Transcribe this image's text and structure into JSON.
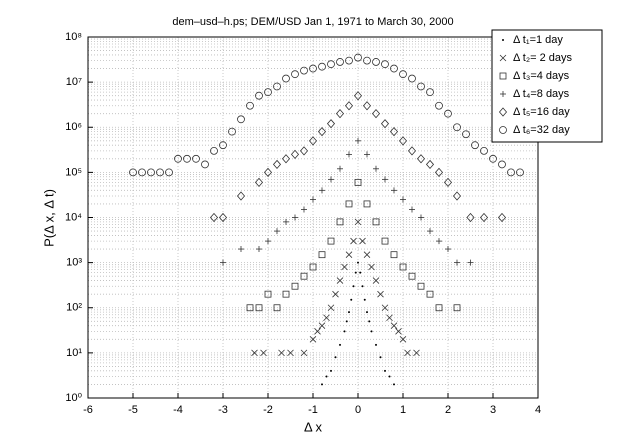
{
  "chart_data": {
    "type": "scatter",
    "title": "dem–usd–h.ps; DEM/USD Jan 1, 1971 to March 30, 2000",
    "xlabel": "Δ x",
    "ylabel": "P(Δ x, Δ t)",
    "xlim": [
      -6,
      4
    ],
    "xticks": [
      -6,
      -5,
      -4,
      -3,
      -2,
      -1,
      0,
      1,
      2,
      3,
      4
    ],
    "ylim": [
      1,
      100000000
    ],
    "log_y": true,
    "yticks": [
      {
        "value": 1,
        "label": "10⁰"
      },
      {
        "value": 10,
        "label": "10¹"
      },
      {
        "value": 100,
        "label": "10²"
      },
      {
        "value": 1000,
        "label": "10³"
      },
      {
        "value": 10000,
        "label": "10⁴"
      },
      {
        "value": 100000,
        "label": "10⁵"
      },
      {
        "value": 1000000,
        "label": "10⁶"
      },
      {
        "value": 10000000,
        "label": "10⁷"
      },
      {
        "value": 100000000,
        "label": "10⁸"
      }
    ],
    "grid": true,
    "legend": "upper right",
    "series": [
      {
        "name": "Δ t₁=1 day",
        "color": "#000000",
        "marker": "dot",
        "x": [
          -0.8,
          -0.7,
          -0.6,
          -0.5,
          -0.4,
          -0.3,
          -0.25,
          -0.2,
          -0.15,
          -0.1,
          -0.05,
          0,
          0.05,
          0.1,
          0.15,
          0.2,
          0.25,
          0.3,
          0.4,
          0.5,
          0.6,
          0.7,
          0.8
        ],
        "values": [
          2,
          3,
          4,
          8,
          15,
          30,
          50,
          80,
          150,
          300,
          600,
          1000,
          600,
          300,
          150,
          80,
          50,
          30,
          15,
          8,
          4,
          3,
          2
        ]
      },
      {
        "name": "Δ t₂= 2 days",
        "color": "#333333",
        "marker": "x",
        "x": [
          -2.3,
          -2.1,
          -1.7,
          -1.5,
          -1.2,
          -1.0,
          -0.9,
          -0.8,
          -0.7,
          -0.6,
          -0.5,
          -0.4,
          -0.3,
          -0.2,
          -0.1,
          0,
          0.1,
          0.2,
          0.3,
          0.4,
          0.5,
          0.6,
          0.7,
          0.8,
          0.9,
          1.0,
          1.1,
          1.3
        ],
        "values": [
          10,
          10,
          10,
          10,
          10,
          20,
          30,
          40,
          60,
          100,
          200,
          400,
          800,
          1500,
          3000,
          8000,
          3000,
          1500,
          800,
          400,
          200,
          100,
          60,
          40,
          30,
          20,
          10,
          10
        ]
      },
      {
        "name": "Δ t₃=4 days",
        "color": "#333333",
        "marker": "square",
        "x": [
          -2.4,
          -2.2,
          -2.0,
          -1.8,
          -1.6,
          -1.4,
          -1.2,
          -1.0,
          -0.8,
          -0.6,
          -0.4,
          -0.2,
          0,
          0.2,
          0.4,
          0.6,
          0.8,
          1.0,
          1.2,
          1.4,
          1.6,
          1.8,
          2.2
        ],
        "values": [
          100,
          100,
          200,
          100,
          200,
          300,
          500,
          800,
          1500,
          3000,
          8000,
          20000,
          60000,
          20000,
          8000,
          3000,
          1500,
          800,
          500,
          300,
          200,
          100,
          100
        ]
      },
      {
        "name": "Δ t₄=8 days",
        "color": "#333333",
        "marker": "plus",
        "x": [
          -3,
          -2.6,
          -2.2,
          -2.0,
          -1.8,
          -1.6,
          -1.4,
          -1.2,
          -1.0,
          -0.8,
          -0.6,
          -0.4,
          -0.2,
          0,
          0.2,
          0.4,
          0.6,
          0.8,
          1.0,
          1.2,
          1.4,
          1.6,
          1.8,
          2.0,
          2.2,
          2.5
        ],
        "values": [
          1000,
          2000,
          2000,
          3000,
          5000,
          8000,
          10000,
          15000,
          25000,
          40000,
          70000,
          120000,
          250000,
          500000,
          250000,
          120000,
          70000,
          40000,
          25000,
          15000,
          10000,
          5000,
          3000,
          2000,
          1000,
          1000
        ]
      },
      {
        "name": "Δ t₅=16 day",
        "color": "#333333",
        "marker": "diamond",
        "x": [
          -3.2,
          -3.0,
          -2.6,
          -2.2,
          -2.0,
          -1.8,
          -1.6,
          -1.4,
          -1.2,
          -1.0,
          -0.8,
          -0.6,
          -0.4,
          -0.2,
          0,
          0.2,
          0.4,
          0.6,
          0.8,
          1.0,
          1.2,
          1.4,
          1.6,
          1.8,
          2.0,
          2.2,
          2.5,
          2.8,
          3.2
        ],
        "values": [
          10000,
          10000,
          30000,
          60000,
          100000,
          150000,
          200000,
          250000,
          300000,
          500000,
          800000,
          1200000,
          2000000,
          3000000,
          5000000,
          3000000,
          2000000,
          1200000,
          800000,
          500000,
          300000,
          200000,
          150000,
          100000,
          60000,
          30000,
          10000,
          10000,
          10000
        ]
      },
      {
        "name": "Δ t₆=32 day",
        "color": "#333333",
        "marker": "circle",
        "x": [
          -5,
          -4.8,
          -4.6,
          -4.4,
          -4.2,
          -4.0,
          -3.8,
          -3.6,
          -3.4,
          -3.2,
          -3.0,
          -2.8,
          -2.6,
          -2.4,
          -2.2,
          -2.0,
          -1.8,
          -1.6,
          -1.4,
          -1.2,
          -1.0,
          -0.8,
          -0.6,
          -0.4,
          -0.2,
          0,
          0.2,
          0.4,
          0.6,
          0.8,
          1.0,
          1.2,
          1.4,
          1.6,
          1.8,
          2.0,
          2.2,
          2.4,
          2.6,
          2.8,
          3.0,
          3.2,
          3.4,
          3.6
        ],
        "values": [
          100000,
          100000,
          100000,
          100000,
          100000,
          200000,
          200000,
          200000,
          150000,
          300000,
          400000,
          800000,
          1500000,
          3000000,
          5000000,
          6000000,
          8000000,
          12000000,
          15000000,
          18000000,
          20000000,
          22000000,
          25000000,
          28000000,
          30000000,
          35000000,
          30000000,
          28000000,
          25000000,
          20000000,
          15000000,
          12000000,
          8000000,
          6000000,
          3000000,
          2000000,
          1000000,
          700000,
          400000,
          300000,
          200000,
          150000,
          100000,
          100000
        ]
      }
    ]
  }
}
